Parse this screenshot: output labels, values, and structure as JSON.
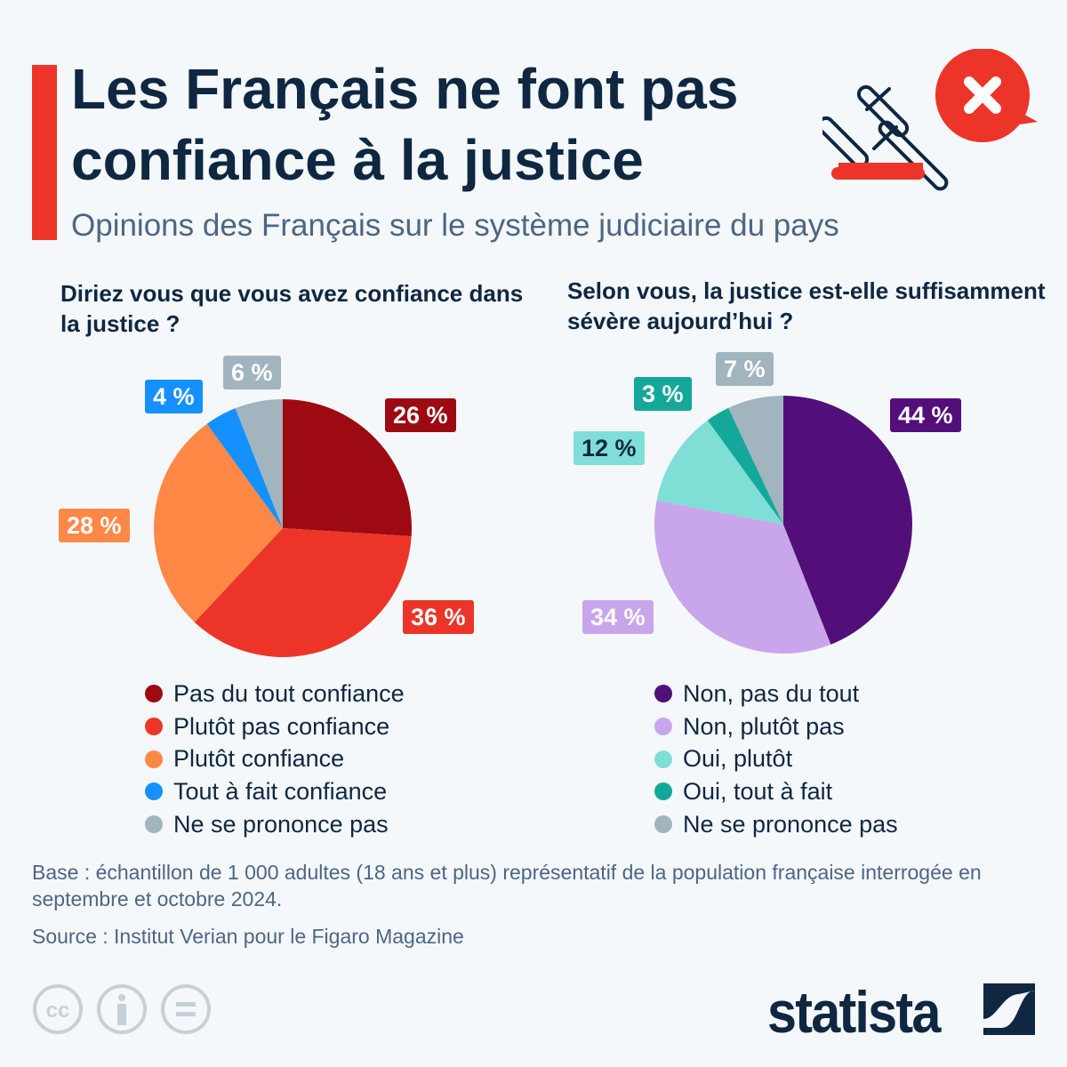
{
  "header": {
    "title": "Les Français ne font pas confiance à la justice",
    "subtitle": "Opinions des Français sur le système judiciaire du pays",
    "icon": "gavel-with-x-icon"
  },
  "chart_data": [
    {
      "type": "pie",
      "title": "Diriez vous que vous avez confiance dans la justice ?",
      "labels": [
        "Pas du tout confiance",
        "Plutôt pas confiance",
        "Plutôt confiance",
        "Tout à fait confiance",
        "Ne se prononce pas"
      ],
      "values": [
        26,
        36,
        28,
        4,
        6
      ],
      "data_labels": [
        "26 %",
        "36 %",
        "28 %",
        "4 %",
        "6 %"
      ],
      "colors": [
        "#9e0a12",
        "#ec3528",
        "#ff8847",
        "#1491ff",
        "#a2b4bd"
      ],
      "label_text_colors": [
        "#ffffff",
        "#ffffff",
        "#ffffff",
        "#ffffff",
        "#ffffff"
      ],
      "legend": "bottom"
    },
    {
      "type": "pie",
      "title": "Selon vous, la justice est-elle suffisamment sévère aujourd’hui ?",
      "labels": [
        "Non, pas du tout",
        "Non, plutôt pas",
        "Oui, plutôt",
        "Oui, tout à fait",
        "Ne se prononce pas"
      ],
      "values": [
        44,
        34,
        12,
        3,
        7
      ],
      "data_labels": [
        "44 %",
        "34 %",
        "12 %",
        "3 %",
        "7 %"
      ],
      "colors": [
        "#520f7a",
        "#c9a6ec",
        "#7fded6",
        "#14a89a",
        "#a2b4bd"
      ],
      "label_text_colors": [
        "#ffffff",
        "#ffffff",
        "#0f2741",
        "#ffffff",
        "#ffffff"
      ],
      "legend": "bottom"
    }
  ],
  "footer": {
    "note": "Base : échantillon de 1 000 adultes (18 ans et plus) représentatif de la population française interrogée en septembre et octobre 2024.",
    "source": "Source : Institut Verian pour le Figaro Magazine",
    "license_icons": [
      "creative-commons-icon",
      "attribution-icon",
      "no-derivatives-icon"
    ],
    "brand": "statista"
  }
}
